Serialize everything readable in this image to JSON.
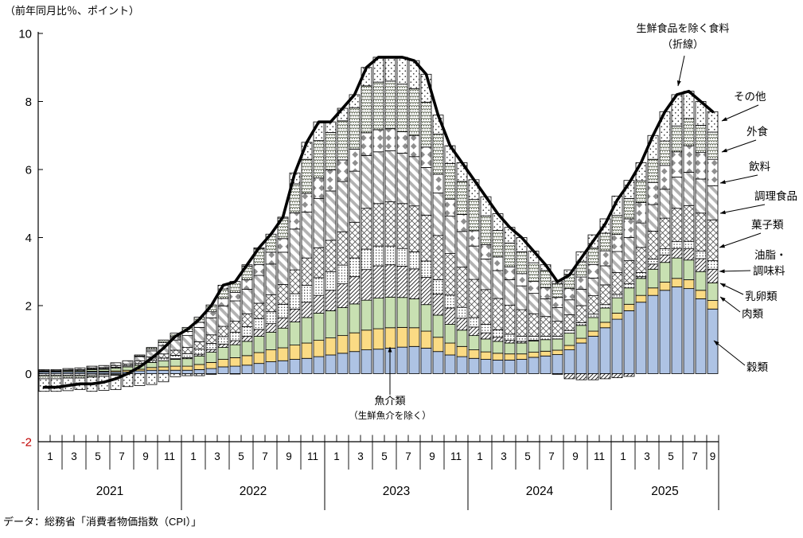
{
  "axis_note": "（前年同月比％、ポイント）",
  "source": "データ：総務省「消費者物価指数（CPI）」",
  "line_annotation": {
    "line1": "生鮮食品を除く食料",
    "line2": "（折線）"
  },
  "fish_annotation": {
    "line1": "魚介類",
    "line2": "（生鮮魚介を除く）"
  },
  "colors": {
    "kokurui": "#aec3e4",
    "gyokai": "#fbdb84",
    "niku": "#c8e0b2",
    "hatch": "#1a1a1a",
    "stripe": "#b2b2b2",
    "diamond": "#8f8f8f",
    "wave": "#4e5742",
    "line": "#000000",
    "neg_tick": "#c00000"
  },
  "y_axis": {
    "ticks": [
      {
        "label": "10",
        "value": 10,
        "color": "#000000"
      },
      {
        "label": "8",
        "value": 8,
        "color": "#000000"
      },
      {
        "label": "6",
        "value": 6,
        "color": "#000000"
      },
      {
        "label": "4",
        "value": 4,
        "color": "#000000"
      },
      {
        "label": "2",
        "value": 2,
        "color": "#000000"
      },
      {
        "label": "0",
        "value": 0,
        "color": "#000000"
      },
      {
        "label": "-2",
        "value": -2,
        "color": "#c00000"
      }
    ]
  },
  "x_axis": {
    "years": [
      {
        "label": "2021",
        "months": 12
      },
      {
        "label": "2022",
        "months": 12
      },
      {
        "label": "2023",
        "months": 12
      },
      {
        "label": "2024",
        "months": 12
      },
      {
        "label": "2025",
        "months": 9
      }
    ],
    "month_labels": [
      "1",
      "3",
      "5",
      "7",
      "9",
      "11"
    ]
  },
  "legend": [
    {
      "id": "sonota",
      "label": "その他"
    },
    {
      "id": "gaishoku",
      "label": "外食"
    },
    {
      "id": "inryo",
      "label": "飲料"
    },
    {
      "id": "chori",
      "label": "調理食品"
    },
    {
      "id": "kashi",
      "label": "油脂・",
      "label_is": "菓子類"
    },
    {
      "id": "yushi",
      "label": "油脂・",
      "label2": "調味料"
    },
    {
      "id": "nyuran",
      "label": "乳卵類"
    },
    {
      "id": "niku",
      "label": "肉類"
    },
    {
      "id": "kokurui",
      "label": "穀類"
    }
  ],
  "chart_data": {
    "type": "bar",
    "stacked": true,
    "title": "",
    "ylabel": "前年同月比％、ポイント",
    "ylim": [
      -2,
      10
    ],
    "x_start": "2021-01",
    "x_end": "2025-09",
    "grid": false,
    "series": [
      {
        "key": "kokurui",
        "name": "穀類",
        "pattern": "solid-blue",
        "values": [
          0.05,
          0.05,
          0.05,
          0.05,
          0.05,
          0.05,
          0.05,
          0.05,
          0.08,
          0.1,
          0.1,
          0.1,
          0.1,
          0.12,
          0.15,
          0.2,
          0.22,
          0.25,
          0.3,
          0.35,
          0.38,
          0.42,
          0.45,
          0.5,
          0.55,
          0.6,
          0.65,
          0.7,
          0.72,
          0.75,
          0.78,
          0.8,
          0.75,
          0.65,
          0.55,
          0.5,
          0.45,
          0.42,
          0.4,
          0.4,
          0.42,
          0.48,
          0.52,
          0.56,
          0.7,
          0.9,
          1.1,
          1.35,
          1.6,
          1.85,
          2.1,
          2.3,
          2.45,
          2.55,
          2.5,
          2.2,
          1.9
        ]
      },
      {
        "key": "gyokai",
        "name": "魚介類（生鮮魚介を除く）",
        "pattern": "solid-yellow",
        "values": [
          0,
          0,
          0,
          0,
          0.02,
          0.02,
          0.03,
          0.05,
          0.05,
          0.08,
          0.1,
          0.12,
          0.12,
          0.15,
          0.18,
          0.22,
          0.25,
          0.28,
          0.32,
          0.35,
          0.38,
          0.42,
          0.45,
          0.48,
          0.5,
          0.52,
          0.55,
          0.58,
          0.6,
          0.6,
          0.58,
          0.55,
          0.5,
          0.42,
          0.35,
          0.3,
          0.25,
          0.22,
          0.2,
          0.18,
          0.16,
          0.15,
          0.14,
          0.13,
          0.13,
          0.14,
          0.15,
          0.16,
          0.18,
          0.19,
          0.2,
          0.22,
          0.24,
          0.25,
          0.26,
          0.25,
          0.25
        ]
      },
      {
        "key": "niku",
        "name": "肉類",
        "pattern": "solid-green",
        "values": [
          0.02,
          0.02,
          0.03,
          0.03,
          0.05,
          0.06,
          0.08,
          0.1,
          0.12,
          0.15,
          0.18,
          0.2,
          0.22,
          0.25,
          0.3,
          0.35,
          0.38,
          0.42,
          0.48,
          0.52,
          0.58,
          0.68,
          0.75,
          0.8,
          0.8,
          0.82,
          0.85,
          0.88,
          0.9,
          0.9,
          0.88,
          0.85,
          0.78,
          0.65,
          0.55,
          0.48,
          0.42,
          0.38,
          0.35,
          0.32,
          0.32,
          0.33,
          0.34,
          0.33,
          0.36,
          0.38,
          0.4,
          0.42,
          0.45,
          0.48,
          0.5,
          0.55,
          0.58,
          0.6,
          0.58,
          0.55,
          0.52
        ]
      },
      {
        "key": "nyuran",
        "name": "乳卵類",
        "pattern": "hatch",
        "values": [
          0,
          0,
          0,
          0,
          0,
          0,
          0,
          0,
          0,
          0,
          0,
          0.02,
          0.03,
          0.05,
          0.08,
          0.1,
          0.12,
          0.15,
          0.2,
          0.25,
          0.3,
          0.38,
          0.45,
          0.52,
          0.6,
          0.7,
          0.8,
          0.9,
          0.95,
          0.95,
          0.92,
          0.88,
          0.8,
          0.62,
          0.48,
          0.35,
          0.25,
          0.18,
          0.12,
          0.08,
          0.05,
          0.02,
          0,
          -0.02,
          -0.15,
          -0.18,
          -0.18,
          -0.15,
          -0.12,
          -0.08,
          0.05,
          0.15,
          0.22,
          0.28,
          0.33,
          0.38,
          0.4
        ]
      },
      {
        "key": "yushi",
        "name": "油脂・調味料",
        "pattern": "fine-dots",
        "values": [
          0,
          0,
          0.01,
          0.01,
          0.02,
          0.02,
          0.03,
          0.03,
          0.05,
          0.06,
          0.08,
          0.1,
          0.12,
          0.15,
          0.18,
          0.22,
          0.25,
          0.28,
          0.32,
          0.35,
          0.4,
          0.45,
          0.5,
          0.52,
          0.55,
          0.55,
          0.55,
          0.6,
          0.58,
          0.55,
          0.52,
          0.5,
          0.48,
          0.42,
          0.38,
          0.32,
          0.28,
          0.25,
          0.22,
          0.18,
          0.15,
          0.12,
          0.1,
          0.08,
          0.08,
          0.08,
          0.1,
          0.1,
          0.1,
          0.12,
          0.12,
          0.15,
          0.18,
          0.2,
          0.22,
          0.22,
          0.25
        ]
      },
      {
        "key": "kashi",
        "name": "菓子類",
        "pattern": "crosshatch",
        "values": [
          0.02,
          0.02,
          0.02,
          0.03,
          0.03,
          0.03,
          0.05,
          0.05,
          0.08,
          0.1,
          0.12,
          0.15,
          0.18,
          0.22,
          0.25,
          0.3,
          0.32,
          0.38,
          0.45,
          0.5,
          0.58,
          0.7,
          0.8,
          0.88,
          0.92,
          0.98,
          1.05,
          1.2,
          1.25,
          1.3,
          1.32,
          1.35,
          1.35,
          1.3,
          1.22,
          1.18,
          1.12,
          1.02,
          0.92,
          0.85,
          0.78,
          0.66,
          0.58,
          0.44,
          0.46,
          0.5,
          0.54,
          0.58,
          0.64,
          0.68,
          0.74,
          0.82,
          0.9,
          0.98,
          1.05,
          1.12,
          1.2
        ]
      },
      {
        "key": "chori",
        "name": "調理食品",
        "pattern": "grey-stripes",
        "values": [
          0.03,
          0.03,
          0.04,
          0.05,
          0.05,
          0.06,
          0.08,
          0.1,
          0.12,
          0.18,
          0.25,
          0.3,
          0.35,
          0.42,
          0.5,
          0.6,
          0.6,
          0.72,
          0.82,
          0.9,
          0.95,
          1.2,
          1.35,
          1.45,
          1.45,
          1.48,
          1.5,
          1.55,
          1.52,
          1.5,
          1.48,
          1.45,
          1.4,
          1.25,
          1.1,
          1.05,
          0.98,
          0.9,
          0.82,
          0.75,
          0.7,
          0.6,
          0.52,
          0.4,
          0.44,
          0.48,
          0.52,
          0.56,
          0.62,
          0.68,
          0.72,
          0.78,
          0.85,
          0.92,
          0.98,
          1.0,
          1.0
        ]
      },
      {
        "key": "inryo",
        "name": "飲料",
        "pattern": "diamonds",
        "values": [
          -0.05,
          -0.05,
          -0.05,
          -0.05,
          -0.04,
          -0.03,
          -0.02,
          0,
          0.02,
          0.05,
          0.08,
          0.1,
          0.12,
          0.15,
          0.18,
          0.22,
          0.25,
          0.28,
          0.32,
          0.35,
          0.4,
          0.48,
          0.55,
          0.6,
          0.62,
          0.63,
          0.65,
          0.67,
          0.65,
          0.65,
          0.63,
          0.62,
          0.6,
          0.55,
          0.5,
          0.5,
          0.45,
          0.42,
          0.4,
          0.38,
          0.36,
          0.35,
          0.33,
          0.3,
          0.33,
          0.36,
          0.4,
          0.44,
          0.5,
          0.55,
          0.6,
          0.65,
          0.7,
          0.74,
          0.78,
          0.78,
          0.78
        ]
      },
      {
        "key": "gaishoku",
        "name": "外食",
        "pattern": "waves",
        "values": [
          -0.1,
          -0.1,
          -0.08,
          -0.08,
          -0.06,
          -0.05,
          -0.03,
          0,
          0.03,
          0.05,
          0.08,
          0.1,
          0.12,
          0.15,
          0.2,
          0.28,
          0.32,
          0.4,
          0.46,
          0.53,
          0.6,
          0.85,
          1.0,
          1.1,
          1.1,
          1.15,
          1.22,
          1.38,
          1.4,
          1.4,
          1.4,
          1.38,
          1.32,
          1.18,
          1.05,
          0.97,
          0.92,
          0.85,
          0.78,
          0.7,
          0.64,
          0.55,
          0.5,
          0.4,
          0.42,
          0.45,
          0.48,
          0.52,
          0.56,
          0.6,
          0.64,
          0.68,
          0.72,
          0.76,
          0.8,
          0.8,
          0.8
        ]
      },
      {
        "key": "sonota",
        "name": "その他",
        "pattern": "sparse-dots",
        "values": [
          -0.37,
          -0.37,
          -0.37,
          -0.34,
          -0.42,
          -0.41,
          -0.42,
          -0.38,
          -0.35,
          -0.32,
          -0.24,
          -0.09,
          -0.06,
          -0.06,
          -0.02,
          0.11,
          -0.01,
          0.04,
          0.03,
          0,
          0.03,
          0.32,
          0.5,
          0.55,
          0.31,
          0.37,
          0.38,
          0.54,
          0.73,
          0.7,
          0.79,
          0.82,
          0.82,
          0.56,
          0.52,
          0.55,
          0.58,
          0.56,
          0.49,
          0.46,
          0.42,
          0.34,
          0.17,
          0.08,
          0.13,
          0.29,
          0.39,
          0.42,
          0.57,
          0.53,
          0.53,
          0.7,
          0.86,
          0.92,
          0.8,
          0.7,
          0.6
        ]
      }
    ],
    "line_series": {
      "name": "生鮮食品を除く食料",
      "values": [
        -0.4,
        -0.4,
        -0.35,
        -0.3,
        -0.3,
        -0.25,
        -0.15,
        0,
        0.2,
        0.45,
        0.75,
        1.1,
        1.3,
        1.6,
        2,
        2.6,
        2.7,
        3.2,
        3.7,
        4.1,
        4.6,
        5.9,
        6.8,
        7.4,
        7.4,
        7.8,
        8.2,
        9,
        9.3,
        9.3,
        9.3,
        9.2,
        8.8,
        7.6,
        6.7,
        6.2,
        5.7,
        5.2,
        4.7,
        4.3,
        4,
        3.6,
        3.2,
        2.7,
        2.9,
        3.4,
        3.9,
        4.4,
        5.1,
        5.6,
        6.2,
        7,
        7.7,
        8.2,
        8.3,
        8,
        7.7
      ]
    }
  }
}
